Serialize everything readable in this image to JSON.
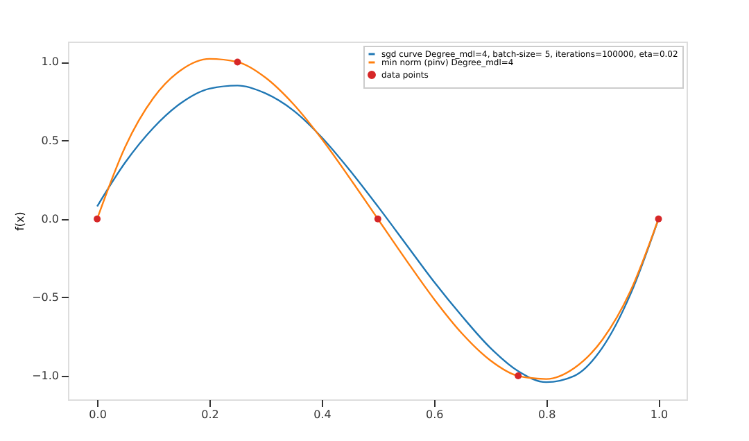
{
  "chart_data": {
    "type": "line",
    "ylabel": "f(x)",
    "xlim": [
      -0.052,
      1.05
    ],
    "ylim": [
      -1.15,
      1.13
    ],
    "xticks": [
      {
        "value": 0,
        "label": "0.0"
      },
      {
        "value": 0.2,
        "label": "0.2"
      },
      {
        "value": 0.4,
        "label": "0.4"
      },
      {
        "value": 0.6,
        "label": "0.6"
      },
      {
        "value": 0.8,
        "label": "0.8"
      },
      {
        "value": 1,
        "label": "1.0"
      }
    ],
    "yticks": [
      {
        "value": -1,
        "label": "−1.0"
      },
      {
        "value": -0.5,
        "label": "−0.5"
      },
      {
        "value": 0,
        "label": "0.0"
      },
      {
        "value": 0.5,
        "label": "0.5"
      },
      {
        "value": 1,
        "label": "1.0"
      }
    ],
    "grid": false,
    "legend": "top right",
    "series": [
      {
        "name": "sgd curve Degree_mdl=4, batch-size= 5, iterations=100000, eta=0.02",
        "color": "#1f77b4",
        "marker": "none",
        "x": [
          0,
          0.05,
          0.1,
          0.15,
          0.2,
          0.25,
          0.3,
          0.35,
          0.4,
          0.45,
          0.5,
          0.55,
          0.6,
          0.65,
          0.7,
          0.75,
          0.8,
          0.85,
          0.9,
          0.95,
          1.0
        ],
        "values": [
          0.08,
          0.36,
          0.58,
          0.74,
          0.83,
          0.85,
          0.8,
          0.69,
          0.52,
          0.31,
          0.08,
          -0.16,
          -0.4,
          -0.62,
          -0.82,
          -0.97,
          -1.04,
          -1.0,
          -0.82,
          -0.48,
          0.0
        ]
      },
      {
        "name": "min norm (pinv) Degree_mdl=4",
        "color": "#ff7f0e",
        "marker": "none",
        "x": [
          0,
          0.05,
          0.1,
          0.15,
          0.2,
          0.25,
          0.3,
          0.35,
          0.4,
          0.45,
          0.5,
          0.55,
          0.6,
          0.65,
          0.7,
          0.75,
          0.8,
          0.85,
          0.9,
          0.95,
          1.0
        ],
        "values": [
          0,
          0.46,
          0.77,
          0.95,
          1.02,
          1.0,
          0.9,
          0.73,
          0.51,
          0.26,
          0,
          -0.26,
          -0.51,
          -0.73,
          -0.9,
          -1.0,
          -1.02,
          -0.95,
          -0.77,
          -0.46,
          0
        ]
      },
      {
        "name": "data points",
        "color": "#d62728",
        "type": "scatter",
        "marker": "circle",
        "x": [
          0,
          0.25,
          0.5,
          0.75,
          1.0
        ],
        "values": [
          0,
          1,
          0,
          -1,
          0
        ]
      }
    ]
  }
}
